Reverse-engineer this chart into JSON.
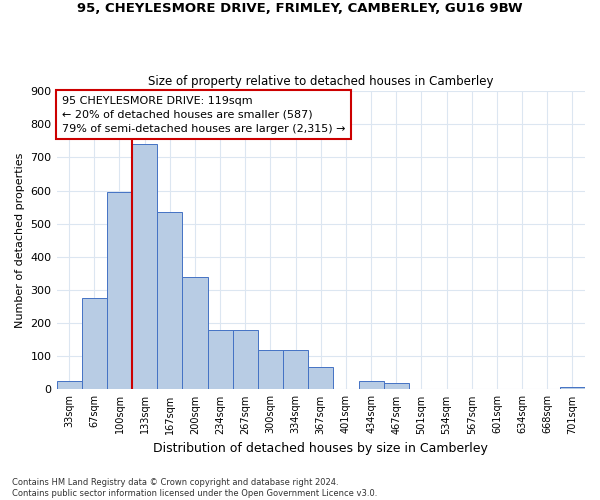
{
  "title1": "95, CHEYLESMORE DRIVE, FRIMLEY, CAMBERLEY, GU16 9BW",
  "title2": "Size of property relative to detached houses in Camberley",
  "xlabel": "Distribution of detached houses by size in Camberley",
  "ylabel": "Number of detached properties",
  "categories": [
    "33sqm",
    "67sqm",
    "100sqm",
    "133sqm",
    "167sqm",
    "200sqm",
    "234sqm",
    "267sqm",
    "300sqm",
    "334sqm",
    "367sqm",
    "401sqm",
    "434sqm",
    "467sqm",
    "501sqm",
    "534sqm",
    "567sqm",
    "601sqm",
    "634sqm",
    "668sqm",
    "701sqm"
  ],
  "values": [
    25,
    275,
    595,
    740,
    535,
    340,
    178,
    178,
    120,
    120,
    67,
    0,
    25,
    20,
    0,
    0,
    0,
    0,
    0,
    0,
    8
  ],
  "bar_color": "#b8cce4",
  "bar_edge_color": "#4472c4",
  "vline_color": "#cc0000",
  "vline_pos": 2.5,
  "annotation_line1": "95 CHEYLESMORE DRIVE: 119sqm",
  "annotation_line2": "← 20% of detached houses are smaller (587)",
  "annotation_line3": "79% of semi-detached houses are larger (2,315) →",
  "annotation_box_color": "#ffffff",
  "annotation_box_edge": "#cc0000",
  "ylim": [
    0,
    900
  ],
  "yticks": [
    0,
    100,
    200,
    300,
    400,
    500,
    600,
    700,
    800,
    900
  ],
  "footer": "Contains HM Land Registry data © Crown copyright and database right 2024.\nContains public sector information licensed under the Open Government Licence v3.0.",
  "background_color": "#ffffff",
  "grid_color": "#dce6f1"
}
